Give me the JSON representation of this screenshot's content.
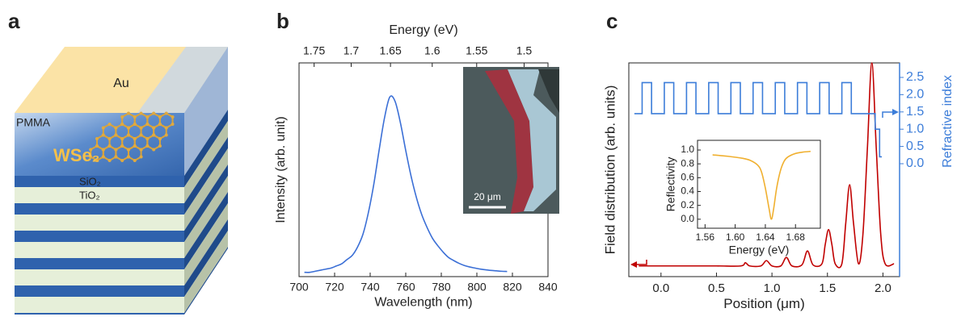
{
  "diagram": {
    "label": "a",
    "au": "Au",
    "pmma": "PMMA",
    "wse2": "WSe₂",
    "sio2": "SiO₂",
    "tio2": "TiO₂"
  },
  "chart_data": [
    {
      "type": "line",
      "panel_label": "b",
      "xlabel": "Wavelength (nm)",
      "ylabel": "Intensity (arb. unit)",
      "x2label": "Energy (eV)",
      "xlim": [
        700,
        840
      ],
      "xticks": [
        700,
        720,
        740,
        760,
        780,
        800,
        820,
        840
      ],
      "x2ticks": [
        1.75,
        1.7,
        1.65,
        1.6,
        1.55,
        1.5
      ],
      "ylim": [
        0,
        1
      ],
      "scale_bar": "20 μm",
      "series": [
        {
          "color": "#3b6fd6",
          "x": [
            703,
            706,
            709,
            712,
            715,
            718,
            721,
            724,
            727,
            730,
            733,
            736,
            739,
            742,
            745,
            748,
            751,
            754,
            757,
            760,
            763,
            766,
            769,
            772,
            775,
            778,
            781,
            784,
            787,
            790,
            793,
            796,
            799,
            802,
            805,
            808,
            811,
            814,
            817
          ],
          "values": [
            0.02,
            0.02,
            0.025,
            0.03,
            0.035,
            0.04,
            0.05,
            0.06,
            0.08,
            0.1,
            0.14,
            0.2,
            0.3,
            0.43,
            0.59,
            0.74,
            0.84,
            0.82,
            0.72,
            0.59,
            0.47,
            0.37,
            0.29,
            0.23,
            0.18,
            0.145,
            0.115,
            0.09,
            0.075,
            0.062,
            0.052,
            0.045,
            0.04,
            0.035,
            0.032,
            0.029,
            0.027,
            0.025,
            0.024
          ]
        }
      ]
    },
    {
      "type": "line",
      "panel_label": "c",
      "xlabel": "Position (μm)",
      "ylabel": "Field distribution (arb. units)",
      "y2label": "Refractive index",
      "xlim": [
        -0.29,
        2.15
      ],
      "xticks": [
        {
          "value": 0,
          "label": "0.0"
        },
        0.5,
        {
          "value": 1,
          "label": "1.0"
        },
        1.5,
        {
          "value": 2,
          "label": "2.0"
        }
      ],
      "ylim": [
        0,
        1
      ],
      "y2lim": [
        -3.27,
        2.92
      ],
      "y2ticks": [
        {
          "value": 0,
          "label": "0.0"
        },
        0.5,
        {
          "value": 1,
          "label": "1.0"
        },
        1.5,
        {
          "value": 2,
          "label": "2.0"
        },
        2.5
      ],
      "series": [
        {
          "color": "#c00000",
          "x": [
            -0.2,
            0.2,
            0.5,
            0.72,
            0.76,
            0.8,
            0.9,
            0.95,
            1.0,
            1.08,
            1.13,
            1.18,
            1.27,
            1.32,
            1.37,
            1.45,
            1.48,
            1.51,
            1.54,
            1.57,
            1.63,
            1.665,
            1.7,
            1.735,
            1.78,
            1.82,
            1.86,
            1.9,
            1.94,
            1.98,
            2.02,
            2.1
          ],
          "values": [
            0.05,
            0.05,
            0.05,
            0.05,
            0.065,
            0.05,
            0.05,
            0.075,
            0.05,
            0.05,
            0.09,
            0.05,
            0.055,
            0.12,
            0.055,
            0.06,
            0.15,
            0.22,
            0.15,
            0.06,
            0.06,
            0.25,
            0.43,
            0.25,
            0.06,
            0.2,
            0.6,
            1.0,
            0.6,
            0.2,
            0.06,
            0.06
          ]
        },
        {
          "color": "#3c7dd9",
          "axis": "y2",
          "x": [
            -0.24,
            -0.17,
            -0.17,
            -0.085,
            -0.085,
            0.03,
            0.03,
            0.115,
            0.115,
            0.23,
            0.23,
            0.315,
            0.315,
            0.43,
            0.43,
            0.515,
            0.515,
            0.63,
            0.63,
            0.715,
            0.715,
            0.83,
            0.83,
            0.915,
            0.915,
            1.03,
            1.03,
            1.115,
            1.115,
            1.23,
            1.23,
            1.315,
            1.315,
            1.43,
            1.43,
            1.515,
            1.515,
            1.63,
            1.63,
            1.715,
            1.715,
            1.93,
            1.93,
            1.97,
            1.97,
            1.99
          ],
          "values": [
            1.45,
            1.45,
            2.35,
            2.35,
            1.45,
            1.45,
            2.35,
            2.35,
            1.45,
            1.45,
            2.35,
            2.35,
            1.45,
            1.45,
            2.35,
            2.35,
            1.45,
            1.45,
            2.35,
            2.35,
            1.45,
            1.45,
            2.35,
            2.35,
            1.45,
            1.45,
            2.35,
            2.35,
            1.45,
            1.45,
            2.35,
            2.35,
            1.45,
            1.45,
            2.35,
            2.35,
            1.45,
            1.45,
            2.35,
            2.35,
            1.45,
            1.45,
            1.0,
            1.0,
            0.2,
            0.2
          ]
        }
      ]
    },
    {
      "type": "line",
      "xlabel": "Energy (eV)",
      "ylabel": "Reflectivity",
      "xlim": [
        1.55,
        1.713
      ],
      "xticks": [
        1.56,
        {
          "value": 1.6,
          "label": "1.60"
        },
        1.64,
        1.68
      ],
      "ylim": [
        -0.13,
        1.14
      ],
      "yticks": [
        {
          "value": 0,
          "label": "0.0"
        },
        0.2,
        0.4,
        0.6,
        0.8,
        {
          "value": 1,
          "label": "1.0"
        }
      ],
      "series": [
        {
          "color": "#f0b030",
          "x": [
            1.57,
            1.59,
            1.61,
            1.62,
            1.63,
            1.635,
            1.64,
            1.645,
            1.648,
            1.651,
            1.655,
            1.66,
            1.665,
            1.67,
            1.68,
            1.69,
            1.7
          ],
          "values": [
            0.93,
            0.91,
            0.88,
            0.85,
            0.78,
            0.68,
            0.45,
            0.15,
            0.0,
            0.15,
            0.45,
            0.7,
            0.84,
            0.9,
            0.95,
            0.97,
            0.98
          ]
        }
      ]
    }
  ]
}
